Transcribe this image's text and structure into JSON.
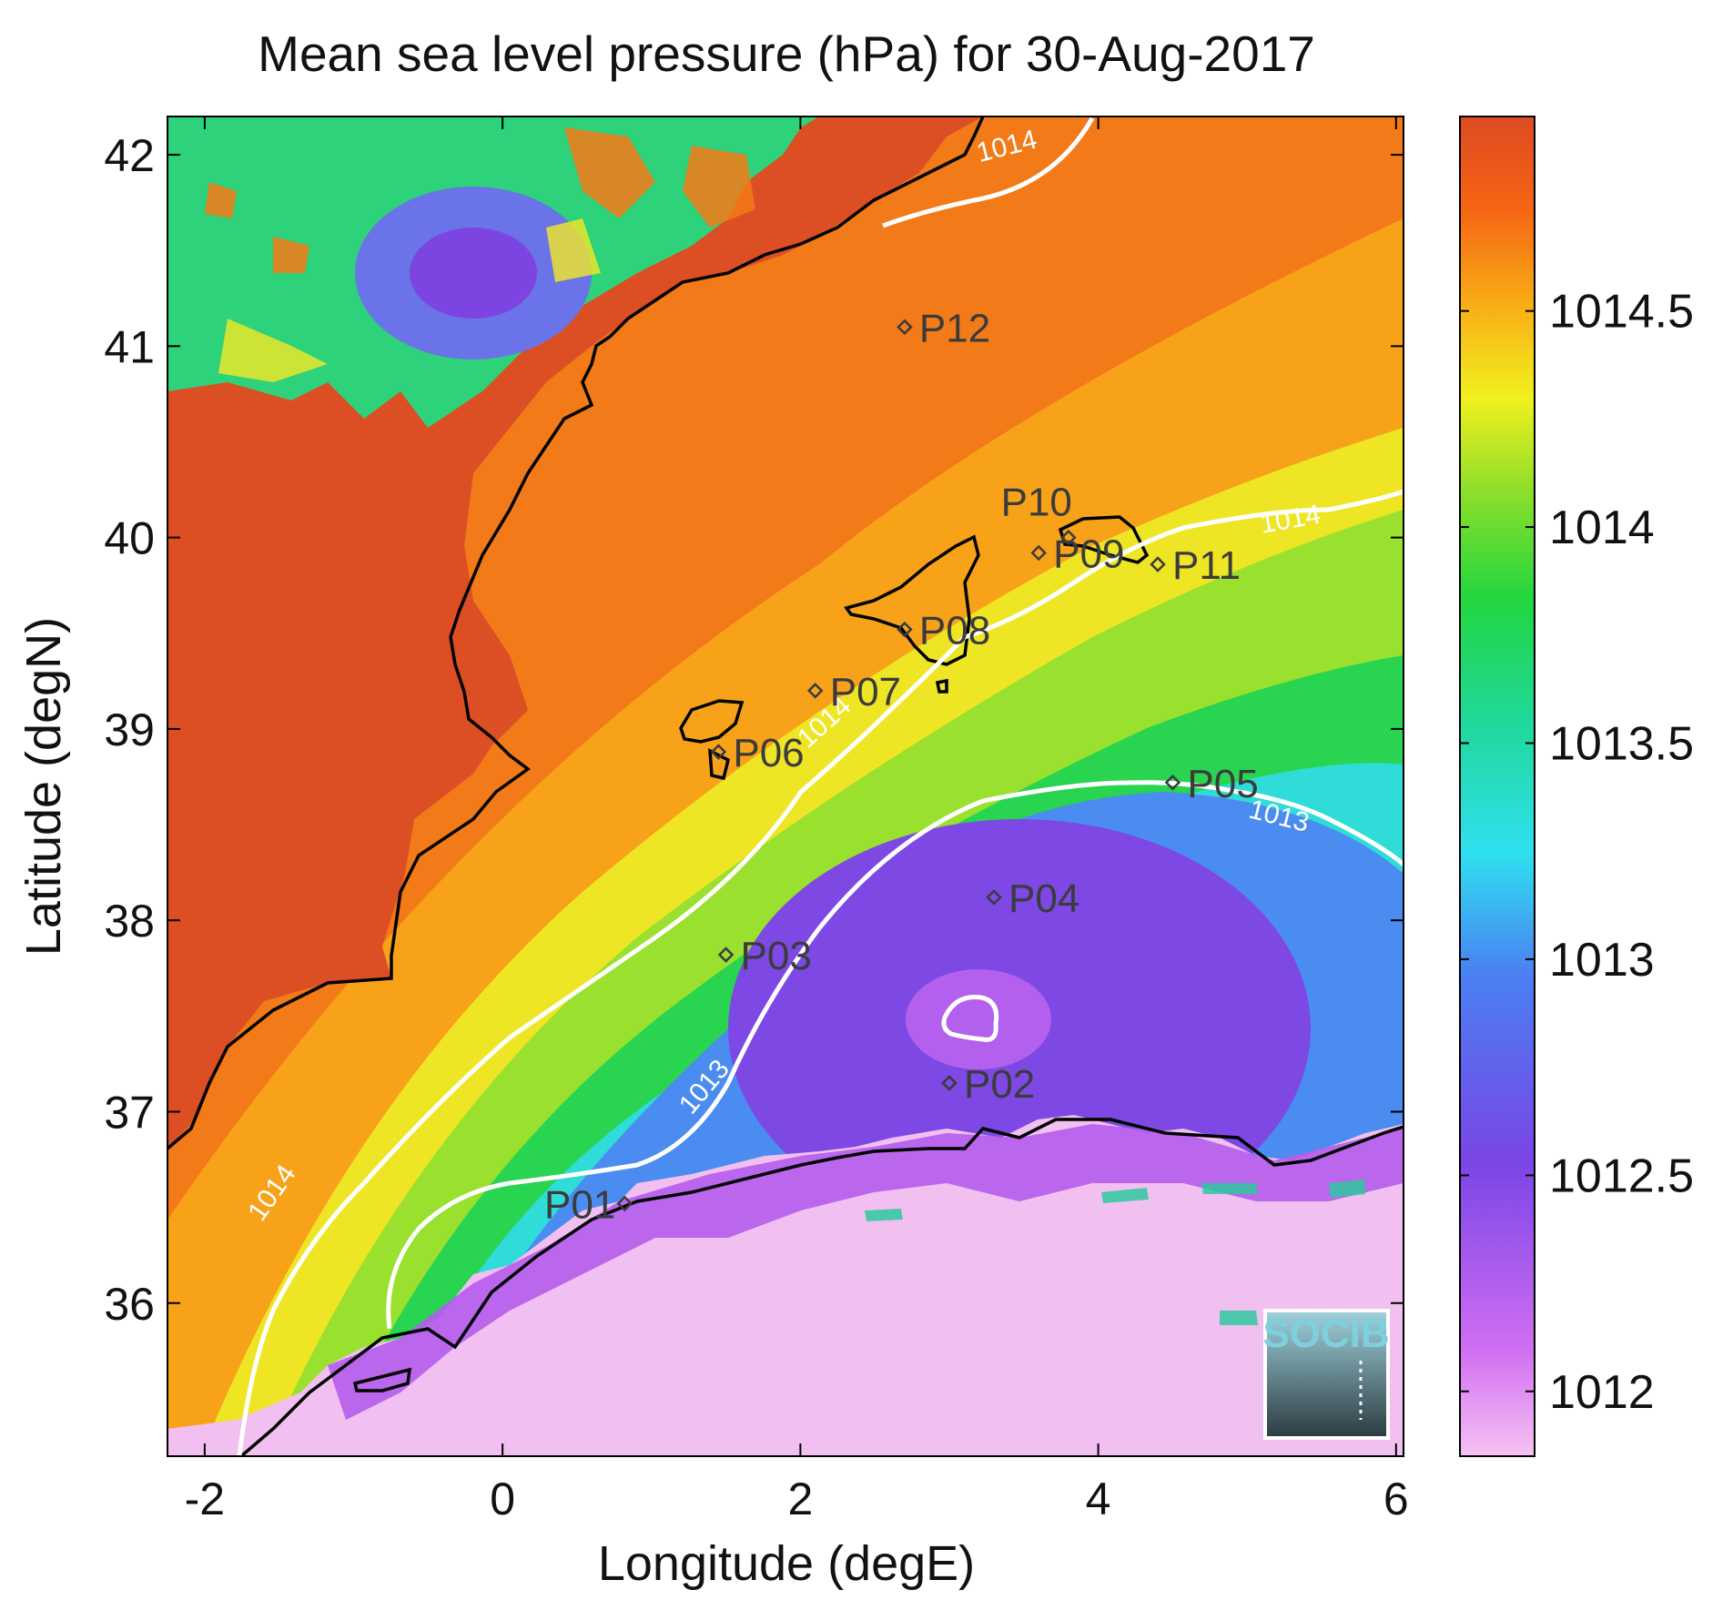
{
  "chart_data": {
    "type": "heatmap",
    "title": "Mean sea level pressure (hPa) for 30-Aug-2017",
    "xlabel": "Longitude (degE)",
    "ylabel": "Latitude (degN)",
    "xlim": [
      -2.25,
      6.05
    ],
    "ylim": [
      35.2,
      42.2
    ],
    "xticks": [
      -2,
      0,
      2,
      4,
      6
    ],
    "xtick_labels": [
      "-2",
      "0",
      "2",
      "4",
      "6"
    ],
    "yticks": [
      36,
      37,
      38,
      39,
      40,
      41,
      42
    ],
    "ytick_labels": [
      "36",
      "37",
      "38",
      "39",
      "40",
      "41",
      "42"
    ],
    "colorbar": {
      "range": [
        1011.85,
        1014.95
      ],
      "ticks": [
        1012,
        1012.5,
        1013,
        1013.5,
        1014,
        1014.5
      ],
      "tick_labels": [
        "1012",
        "1012.5",
        "1013",
        "1013.5",
        "1014",
        "1014.5"
      ]
    },
    "contour_labels": [
      {
        "text": "1014",
        "lon": 3.4,
        "lat": 42.0
      },
      {
        "text": "1014",
        "lon": 5.3,
        "lat": 40.05
      },
      {
        "text": "1014",
        "lon": 2.2,
        "lat": 39.0
      },
      {
        "text": "1014",
        "lon": -1.5,
        "lat": 36.55
      },
      {
        "text": "1013",
        "lon": 1.4,
        "lat": 37.1
      },
      {
        "text": "1013",
        "lon": 5.2,
        "lat": 38.5
      }
    ],
    "stations": [
      {
        "name": "P01",
        "lon": 0.82,
        "lat": 36.52
      },
      {
        "name": "P02",
        "lon": 3.0,
        "lat": 37.15
      },
      {
        "name": "P03",
        "lon": 1.5,
        "lat": 37.82
      },
      {
        "name": "P04",
        "lon": 3.3,
        "lat": 38.12
      },
      {
        "name": "P05",
        "lon": 4.5,
        "lat": 38.72
      },
      {
        "name": "P06",
        "lon": 1.45,
        "lat": 38.88
      },
      {
        "name": "P07",
        "lon": 2.1,
        "lat": 39.2
      },
      {
        "name": "P08",
        "lon": 2.7,
        "lat": 39.52
      },
      {
        "name": "P09",
        "lon": 3.6,
        "lat": 39.92
      },
      {
        "name": "P10",
        "lon": 3.8,
        "lat": 40.0
      },
      {
        "name": "P11",
        "lon": 4.4,
        "lat": 39.86
      },
      {
        "name": "P12",
        "lon": 2.7,
        "lat": 41.1
      }
    ]
  },
  "logo": {
    "text": "SOCIB"
  }
}
